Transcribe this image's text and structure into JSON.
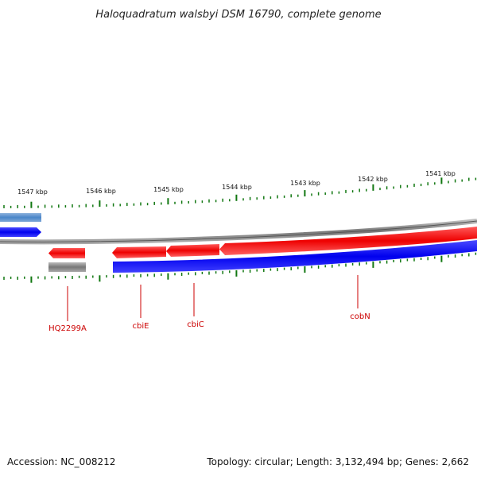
{
  "title": "Haloquadratum walsbyi DSM 16790, complete genome",
  "ticks": [
    "1547 kbp",
    "1546 kbp",
    "1545 kbp",
    "1544 kbp",
    "1543 kbp",
    "1542 kbp",
    "1541 kbp"
  ],
  "genes": [
    {
      "name": "HQ2299A",
      "strand": "reverse"
    },
    {
      "name": "cbiE",
      "strand": "reverse"
    },
    {
      "name": "cbiC",
      "strand": "reverse"
    },
    {
      "name": "cobN",
      "strand": "reverse"
    }
  ],
  "colors": {
    "forward_cds": "#0000ee",
    "reverse_cds": "#ee0000",
    "other_feature": "#4a86c8",
    "pseudo": "#666666",
    "backbone": "#888888",
    "ticks": "#117711",
    "labels": "#cc0000"
  },
  "footer": {
    "accession": "Accession: NC_008212",
    "topology": "Topology: circular; Length: 3,132,494 bp; Genes: 2,662"
  }
}
